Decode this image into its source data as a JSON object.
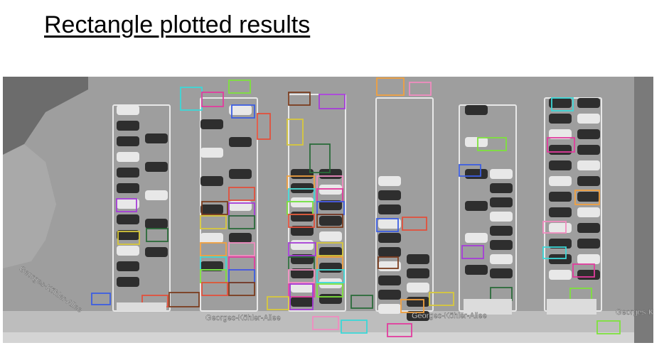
{
  "heading": "Rectangle plotted results",
  "street_labels": {
    "left": "Georges-Köhler-Allee",
    "bottom_center": "Georges-Köhler-Allee",
    "bottom_right": "Georges-Köhler-Allee",
    "far_right": "Georges-Köhl"
  },
  "colors": {
    "ground": "#9e9e9e",
    "paint": "#e8e8e8",
    "box_palette": [
      "#3cd7d7",
      "#e23c9e",
      "#7ee23c",
      "#3c5ee2",
      "#e2503c",
      "#7b3c1e",
      "#a63cd7",
      "#d7c83c",
      "#2b6b3a",
      "#f0a040",
      "#f08cc0"
    ]
  },
  "detections": {
    "shown": true
  }
}
